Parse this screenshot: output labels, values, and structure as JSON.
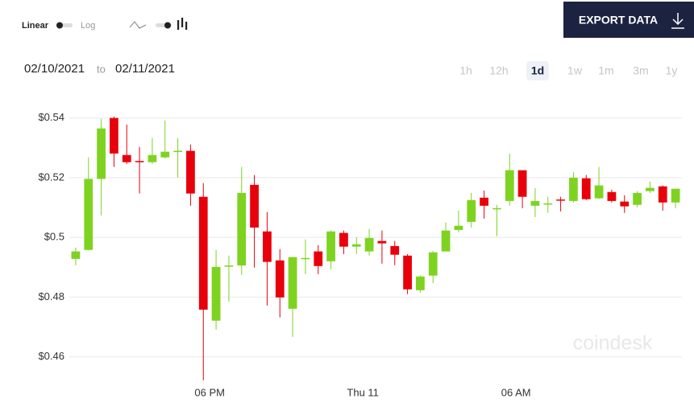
{
  "toolbar": {
    "scale_options": [
      "Linear",
      "Log"
    ],
    "export": "EXPORT DATA"
  },
  "date_range": {
    "from": "02/10/2021",
    "separator": "to",
    "to": "02/11/2021"
  },
  "ranges": [
    "1h",
    "12h",
    "1d",
    "1w",
    "1m",
    "3m",
    "1y"
  ],
  "active_range": "1d",
  "watermark": "coindesk",
  "chart_data": {
    "type": "candlestick",
    "up_color": "#7ed321",
    "down_color": "#e8000b",
    "grid": true,
    "xlim": [
      12.5,
      36.5
    ],
    "xticks": [
      {
        "value": 18,
        "label": "06 PM"
      },
      {
        "value": 24,
        "label": "Thu 11"
      },
      {
        "value": 30,
        "label": "06 AM"
      }
    ],
    "ylim": [
      0.451,
      0.5445
    ],
    "yticks": [
      {
        "value": 0.46,
        "label": "$0.46"
      },
      {
        "value": 0.48,
        "label": "$0.48"
      },
      {
        "value": 0.5,
        "label": "$0.5"
      },
      {
        "value": 0.52,
        "label": "$0.52"
      },
      {
        "value": 0.54,
        "label": "$0.54"
      }
    ],
    "x": [
      12.75,
      13.25,
      13.75,
      14.25,
      14.75,
      15.25,
      15.75,
      16.25,
      16.75,
      17.25,
      17.75,
      18.25,
      18.75,
      19.25,
      19.75,
      20.25,
      20.75,
      21.25,
      21.75,
      22.25,
      22.75,
      23.25,
      23.75,
      24.25,
      24.75,
      25.25,
      25.75,
      26.25,
      26.75,
      27.25,
      27.75,
      28.25,
      28.75,
      29.25,
      29.75,
      30.25,
      30.75,
      31.25,
      31.75,
      32.25,
      32.75,
      33.25,
      33.75,
      34.25,
      34.75,
      35.25,
      35.75,
      36.25
    ],
    "open": [
      0.4928,
      0.4958,
      0.5196,
      0.54,
      0.5276,
      0.5256,
      0.5252,
      0.5268,
      0.5288,
      0.529,
      0.5136,
      0.4721,
      0.4903,
      0.4906,
      0.5176,
      0.502,
      0.4923,
      0.4761,
      0.4928,
      0.4953,
      0.492,
      0.5015,
      0.4969,
      0.4953,
      0.4988,
      0.4971,
      0.4939,
      0.4823,
      0.4872,
      0.4953,
      0.5025,
      0.5052,
      0.5133,
      0.5095,
      0.5122,
      0.5225,
      0.5106,
      0.511,
      0.5127,
      0.5122,
      0.5198,
      0.5131,
      0.5152,
      0.512,
      0.5109,
      0.5155,
      0.5171,
      0.5117
    ],
    "high": [
      0.4966,
      0.5268,
      0.5397,
      0.5405,
      0.5378,
      0.5303,
      0.5333,
      0.5392,
      0.5333,
      0.5311,
      0.5182,
      0.4958,
      0.4939,
      0.5236,
      0.5209,
      0.5085,
      0.4961,
      0.4934,
      0.4993,
      0.4974,
      0.5023,
      0.5023,
      0.5,
      0.5028,
      0.5023,
      0.4988,
      0.4944,
      0.4872,
      0.4955,
      0.505,
      0.509,
      0.5149,
      0.5157,
      0.5109,
      0.5281,
      0.5225,
      0.5165,
      0.5136,
      0.5136,
      0.5219,
      0.5209,
      0.5236,
      0.516,
      0.5141,
      0.5155,
      0.5187,
      0.5174,
      0.5163
    ],
    "low": [
      0.4907,
      0.4956,
      0.5074,
      0.5236,
      0.5246,
      0.5147,
      0.5246,
      0.5265,
      0.52,
      0.5106,
      0.4521,
      0.4691,
      0.4785,
      0.4874,
      0.4899,
      0.4772,
      0.4732,
      0.4667,
      0.4877,
      0.4877,
      0.4893,
      0.4944,
      0.4944,
      0.4939,
      0.4912,
      0.4907,
      0.481,
      0.4815,
      0.4847,
      0.4953,
      0.5017,
      0.5033,
      0.5063,
      0.5004,
      0.5106,
      0.5098,
      0.5068,
      0.5082,
      0.5087,
      0.5117,
      0.5125,
      0.5128,
      0.5117,
      0.5082,
      0.5101,
      0.5149,
      0.509,
      0.5098
    ],
    "close": [
      0.4953,
      0.5196,
      0.5365,
      0.5281,
      0.5252,
      0.5253,
      0.5276,
      0.5287,
      0.529,
      0.5147,
      0.4758,
      0.4901,
      0.4906,
      0.5149,
      0.5033,
      0.4918,
      0.4799,
      0.4934,
      0.4931,
      0.4904,
      0.502,
      0.4969,
      0.4977,
      0.4998,
      0.498,
      0.4942,
      0.4826,
      0.4869,
      0.495,
      0.5023,
      0.5039,
      0.5125,
      0.5106,
      0.5098,
      0.5225,
      0.5136,
      0.5122,
      0.5114,
      0.5123,
      0.52,
      0.5128,
      0.5174,
      0.5122,
      0.5104,
      0.5149,
      0.5166,
      0.5117,
      0.5163
    ]
  }
}
